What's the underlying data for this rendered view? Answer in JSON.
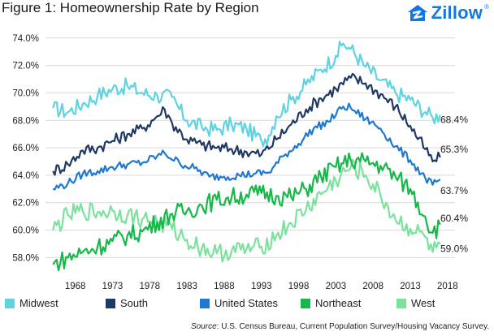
{
  "title": "Figure 1: Homeownership Rate by Region",
  "brand": "Zillow",
  "brand_suffix": "®",
  "source_label": "Source",
  "source_text": ": U.S. Census Bureau, Current Population Survey/Housing Vacancy Survey.",
  "colors": {
    "midwest": "#5fd3e0",
    "south": "#1f3864",
    "united_states": "#1f78d1",
    "northeast": "#16b84a",
    "west": "#7be29d",
    "gridline": "#d9d9d9",
    "brand": "#1277e1"
  },
  "chart_data": {
    "type": "line",
    "title": "Figure 1: Homeownership Rate by Region",
    "xlabel": "",
    "ylabel": "",
    "x_ticks": [
      "1968",
      "1973",
      "1978",
      "1983",
      "1988",
      "1993",
      "1998",
      "2003",
      "2008",
      "2013",
      "2018"
    ],
    "y_ticks": [
      "58.0%",
      "60.0%",
      "62.0%",
      "64.0%",
      "66.0%",
      "68.0%",
      "70.0%",
      "72.0%",
      "74.0%"
    ],
    "xlim": [
      1964,
      2019
    ],
    "ylim": [
      56.9,
      74.4
    ],
    "grid": "horizontal",
    "legend_position": "bottom",
    "series": [
      {
        "name": "Midwest",
        "color_key": "midwest",
        "end_label": "68.4%",
        "points": [
          [
            1965,
            68.9
          ],
          [
            1967,
            68.6
          ],
          [
            1969,
            69.2
          ],
          [
            1971,
            69.8
          ],
          [
            1973,
            70.3
          ],
          [
            1975,
            70.5
          ],
          [
            1977,
            70.0
          ],
          [
            1979,
            69.8
          ],
          [
            1981,
            69.7
          ],
          [
            1982,
            68.8
          ],
          [
            1983,
            68.0
          ],
          [
            1985,
            67.5
          ],
          [
            1987,
            67.3
          ],
          [
            1989,
            67.7
          ],
          [
            1991,
            67.4
          ],
          [
            1993,
            66.5
          ],
          [
            1994,
            66.9
          ],
          [
            1995,
            68.3
          ],
          [
            1997,
            69.5
          ],
          [
            1999,
            70.6
          ],
          [
            2001,
            71.7
          ],
          [
            2003,
            72.7
          ],
          [
            2004,
            73.6
          ],
          [
            2005,
            73.2
          ],
          [
            2007,
            71.9
          ],
          [
            2009,
            70.9
          ],
          [
            2011,
            70.0
          ],
          [
            2013,
            69.5
          ],
          [
            2015,
            68.6
          ],
          [
            2016,
            68.2
          ],
          [
            2017,
            68.4
          ]
        ]
      },
      {
        "name": "South",
        "color_key": "south",
        "end_label": "65.3%",
        "points": [
          [
            1965,
            64.3
          ],
          [
            1967,
            64.8
          ],
          [
            1969,
            65.8
          ],
          [
            1971,
            66.0
          ],
          [
            1973,
            66.5
          ],
          [
            1975,
            67.0
          ],
          [
            1977,
            67.4
          ],
          [
            1979,
            68.3
          ],
          [
            1980,
            68.8
          ],
          [
            1981,
            67.8
          ],
          [
            1983,
            66.6
          ],
          [
            1985,
            66.2
          ],
          [
            1987,
            66.0
          ],
          [
            1989,
            65.9
          ],
          [
            1991,
            65.7
          ],
          [
            1993,
            65.5
          ],
          [
            1995,
            66.6
          ],
          [
            1997,
            67.7
          ],
          [
            1999,
            68.8
          ],
          [
            2001,
            69.6
          ],
          [
            2003,
            70.3
          ],
          [
            2005,
            71.1
          ],
          [
            2007,
            70.7
          ],
          [
            2009,
            69.9
          ],
          [
            2011,
            69.0
          ],
          [
            2013,
            67.6
          ],
          [
            2015,
            65.9
          ],
          [
            2016,
            65.0
          ],
          [
            2017,
            65.3
          ]
        ]
      },
      {
        "name": "United States",
        "color_key": "united_states",
        "end_label": "63.7%",
        "points": [
          [
            1965,
            63.0
          ],
          [
            1967,
            63.4
          ],
          [
            1969,
            64.1
          ],
          [
            1971,
            64.3
          ],
          [
            1973,
            64.6
          ],
          [
            1975,
            64.8
          ],
          [
            1977,
            64.9
          ],
          [
            1979,
            65.4
          ],
          [
            1980,
            65.6
          ],
          [
            1982,
            64.9
          ],
          [
            1984,
            64.5
          ],
          [
            1986,
            63.9
          ],
          [
            1988,
            63.9
          ],
          [
            1990,
            64.0
          ],
          [
            1992,
            64.1
          ],
          [
            1994,
            64.2
          ],
          [
            1996,
            65.4
          ],
          [
            1998,
            66.3
          ],
          [
            2000,
            67.4
          ],
          [
            2002,
            67.9
          ],
          [
            2004,
            69.0
          ],
          [
            2005,
            68.9
          ],
          [
            2007,
            68.1
          ],
          [
            2009,
            67.4
          ],
          [
            2011,
            66.1
          ],
          [
            2013,
            65.1
          ],
          [
            2015,
            63.8
          ],
          [
            2016,
            63.3
          ],
          [
            2017,
            63.7
          ]
        ]
      },
      {
        "name": "Northeast",
        "color_key": "northeast",
        "end_label": "60.4%",
        "points": [
          [
            1965,
            57.5
          ],
          [
            1967,
            58.0
          ],
          [
            1969,
            58.4
          ],
          [
            1971,
            58.8
          ],
          [
            1973,
            59.2
          ],
          [
            1975,
            59.6
          ],
          [
            1977,
            59.9
          ],
          [
            1979,
            60.6
          ],
          [
            1981,
            61.2
          ],
          [
            1983,
            61.4
          ],
          [
            1985,
            61.8
          ],
          [
            1987,
            62.2
          ],
          [
            1989,
            62.4
          ],
          [
            1991,
            62.6
          ],
          [
            1993,
            62.7
          ],
          [
            1995,
            62.5
          ],
          [
            1997,
            62.4
          ],
          [
            1999,
            63.0
          ],
          [
            2001,
            63.9
          ],
          [
            2003,
            64.6
          ],
          [
            2005,
            65.1
          ],
          [
            2007,
            65.0
          ],
          [
            2009,
            64.7
          ],
          [
            2011,
            63.9
          ],
          [
            2013,
            63.0
          ],
          [
            2015,
            61.0
          ],
          [
            2016,
            59.8
          ],
          [
            2017,
            60.4
          ]
        ]
      },
      {
        "name": "West",
        "color_key": "west",
        "end_label": "59.0%",
        "points": [
          [
            1965,
            60.0
          ],
          [
            1967,
            61.1
          ],
          [
            1969,
            61.4
          ],
          [
            1971,
            61.3
          ],
          [
            1973,
            61.4
          ],
          [
            1975,
            61.1
          ],
          [
            1977,
            60.8
          ],
          [
            1979,
            60.6
          ],
          [
            1981,
            60.1
          ],
          [
            1983,
            59.3
          ],
          [
            1985,
            58.7
          ],
          [
            1987,
            58.3
          ],
          [
            1989,
            58.5
          ],
          [
            1991,
            58.6
          ],
          [
            1993,
            58.8
          ],
          [
            1995,
            59.6
          ],
          [
            1997,
            60.5
          ],
          [
            1999,
            61.5
          ],
          [
            2001,
            62.6
          ],
          [
            2003,
            63.6
          ],
          [
            2005,
            64.6
          ],
          [
            2007,
            64.0
          ],
          [
            2009,
            62.5
          ],
          [
            2011,
            60.8
          ],
          [
            2013,
            60.1
          ],
          [
            2015,
            59.5
          ],
          [
            2016,
            58.4
          ],
          [
            2017,
            59.0
          ]
        ]
      }
    ]
  }
}
